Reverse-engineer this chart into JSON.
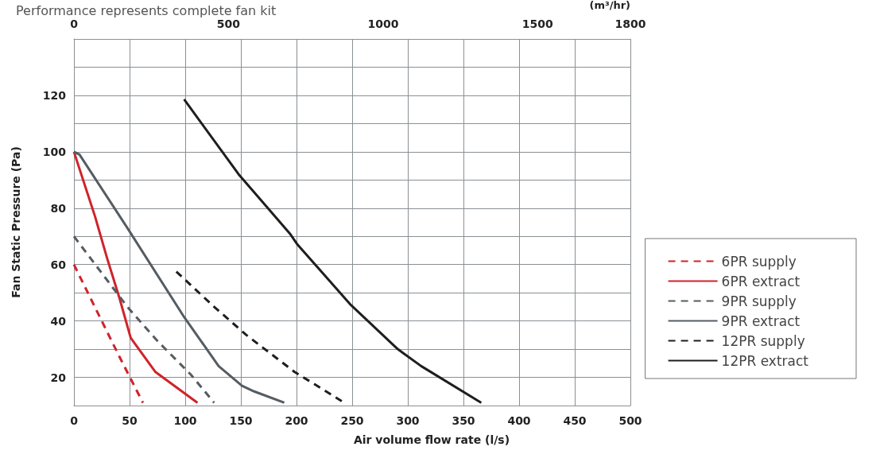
{
  "chart_data": {
    "type": "line",
    "title": "Performance represents complete fan kit",
    "xlabel": "Air volume flow rate (l/s)",
    "ylabel": "Fan Static Pressure (Pa)",
    "x2label": "(m³/hr)",
    "xlim": [
      0,
      500
    ],
    "xticks": [
      0,
      50,
      100,
      150,
      200,
      250,
      300,
      350,
      400,
      450,
      500
    ],
    "x2lim": [
      0,
      1800
    ],
    "x2ticks": [
      0,
      500,
      1000,
      1500,
      1800
    ],
    "ylim": [
      10,
      140
    ],
    "yticks": [
      {
        "value": 10,
        "label": null
      },
      20,
      {
        "value": 30,
        "label": null
      },
      40,
      {
        "value": 50,
        "label": null
      },
      60,
      {
        "value": 70,
        "label": null
      },
      80,
      {
        "value": 90,
        "label": null
      },
      100,
      {
        "value": 110,
        "label": null
      },
      120,
      {
        "value": 130,
        "label": null
      },
      {
        "value": 140,
        "label": null
      }
    ],
    "grid": true,
    "legend": "right",
    "marker": "none",
    "series": [
      {
        "name": "6PR supply",
        "color": "#d0232a",
        "line_style": "dashed",
        "x": [
          0,
          20,
          40,
          62
        ],
        "values": [
          60,
          44,
          28,
          11
        ]
      },
      {
        "name": "6PR extract",
        "color": "#d0232a",
        "line_style": "solid",
        "x": [
          0,
          19,
          30,
          41,
          51,
          73,
          111
        ],
        "values": [
          100,
          77,
          62,
          48,
          34,
          22,
          11
        ]
      },
      {
        "name": "9PR supply",
        "color": "#555c62",
        "line_style": "dashed",
        "x": [
          0,
          48,
          76,
          105,
          126
        ],
        "values": [
          70,
          45,
          32.5,
          21,
          11
        ]
      },
      {
        "name": "9PR extract",
        "color": "#555c62",
        "line_style": "solid",
        "x": [
          0,
          5,
          48,
          98,
          130,
          151,
          162,
          189
        ],
        "values": [
          100,
          99,
          73,
          42,
          24,
          17,
          15,
          11
        ]
      },
      {
        "name": "12PR supply",
        "color": "#1e1e1e",
        "line_style": "dashed",
        "x": [
          92,
          126,
          155,
          198,
          243
        ],
        "values": [
          57.5,
          45,
          35,
          22,
          11
        ]
      },
      {
        "name": "12PR extract",
        "color": "#1e1e1e",
        "line_style": "solid",
        "x": [
          99,
          148,
          194,
          201,
          219,
          248,
          291,
          312,
          366
        ],
        "values": [
          118.6,
          92,
          71,
          67,
          59,
          46,
          30,
          24,
          11
        ]
      }
    ]
  }
}
